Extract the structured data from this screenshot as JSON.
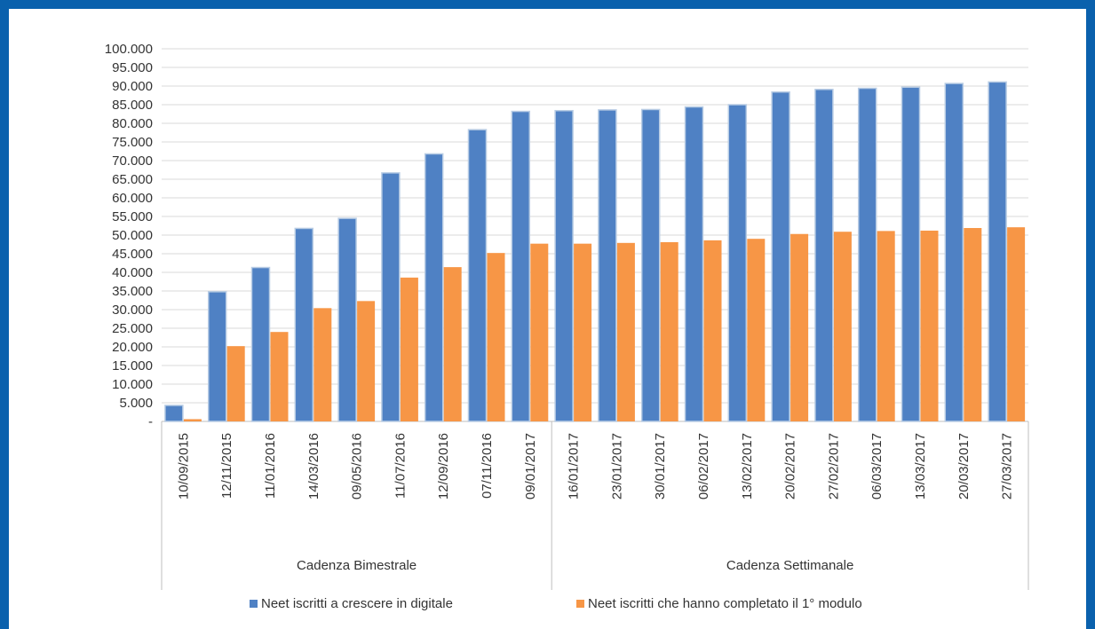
{
  "chart_data": {
    "type": "bar",
    "title": "",
    "xlabel": "",
    "ylabel": "",
    "ylim": [
      0,
      100000
    ],
    "y_ticks": [
      "-",
      "5.000",
      "10.000",
      "15.000",
      "20.000",
      "25.000",
      "30.000",
      "35.000",
      "40.000",
      "45.000",
      "50.000",
      "55.000",
      "60.000",
      "65.000",
      "70.000",
      "75.000",
      "80.000",
      "85.000",
      "90.000",
      "95.000",
      "100.000"
    ],
    "grid": true,
    "legend_position": "bottom",
    "categories": [
      "10/09/2015",
      "12/11/2015",
      "11/01/2016",
      "14/03/2016",
      "09/05/2016",
      "11/07/2016",
      "12/09/2016",
      "07/11/2016",
      "09/01/2017",
      "16/01/2017",
      "23/01/2017",
      "30/01/2017",
      "06/02/2017",
      "13/02/2017",
      "20/02/2017",
      "27/02/2017",
      "06/03/2017",
      "13/03/2017",
      "20/03/2017",
      "27/03/2017"
    ],
    "groups": [
      {
        "label": "Cadenza Bimestrale",
        "count": 9
      },
      {
        "label": "Cadenza Settimanale",
        "count": 11
      }
    ],
    "series": [
      {
        "name": "Neet iscritti a crescere in digitale",
        "color": "#4f81c4",
        "values": [
          4300,
          34800,
          41300,
          51800,
          54500,
          66700,
          71800,
          78300,
          83200,
          83400,
          83600,
          83700,
          84400,
          85000,
          88400,
          89100,
          89400,
          89700,
          90700,
          91100
        ]
      },
      {
        "name": "Neet iscritti che hanno completato il 1° modulo",
        "color": "#f79646",
        "values": [
          600,
          20200,
          24000,
          30400,
          32300,
          38600,
          41400,
          45200,
          47700,
          47700,
          47900,
          48100,
          48600,
          49000,
          50300,
          50900,
          51100,
          51200,
          51900,
          52100
        ]
      }
    ]
  }
}
